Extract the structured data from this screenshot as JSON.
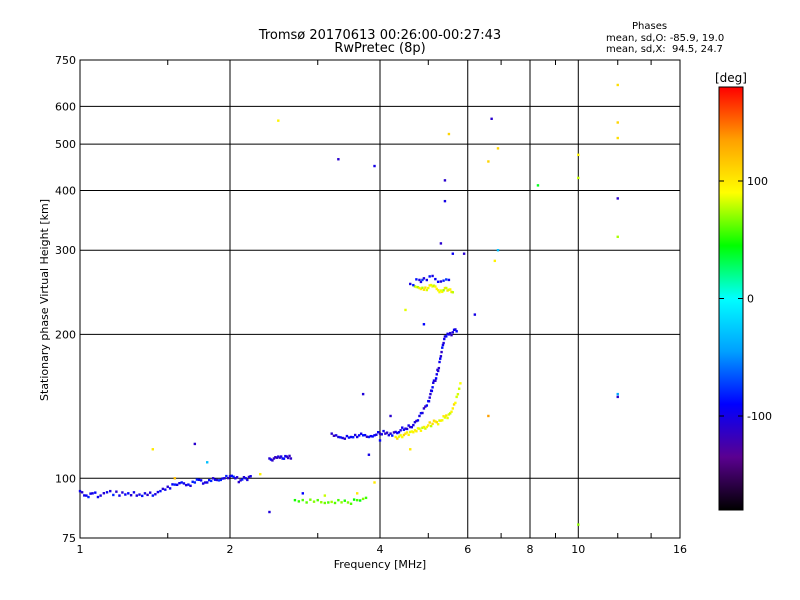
{
  "chart_data": {
    "type": "scatter",
    "title": "Tromsø 20170613 00:26:00-00:27:43",
    "subtitle": "RwPretec (8p)",
    "xlabel": "Frequency [MHz]",
    "ylabel": "Stationary phase Virtual Height [km]",
    "x_scale": "log",
    "y_scale": "log",
    "xlim": [
      1,
      16
    ],
    "ylim": [
      75,
      750
    ],
    "x_ticks": [
      1,
      2,
      4,
      6,
      8,
      10,
      16
    ],
    "y_ticks": [
      75,
      100,
      200,
      300,
      400,
      500,
      600,
      750
    ],
    "grid": true,
    "phases": {
      "heading": "Phases",
      "o_line": "mean, sd,O: -85.9, 19.0",
      "x_line": "mean, sd,X:  94.5, 24.7"
    },
    "colorbar": {
      "label": "[deg]",
      "range": [
        -180,
        180
      ],
      "ticks": [
        100,
        0,
        -100
      ],
      "colors": [
        "#000000",
        "#5a0090",
        "#0000ff",
        "#00a0ff",
        "#00ffff",
        "#00ff00",
        "#ffff00",
        "#ffa000",
        "#ff0000"
      ]
    },
    "traces": [
      {
        "name": "o-low",
        "phase": -95,
        "points": [
          [
            1.0,
            94
          ],
          [
            1.03,
            92
          ],
          [
            1.06,
            93
          ],
          [
            1.1,
            92
          ],
          [
            1.15,
            94
          ],
          [
            1.2,
            92
          ],
          [
            1.25,
            93
          ],
          [
            1.3,
            92
          ],
          [
            1.35,
            93
          ],
          [
            1.4,
            92
          ],
          [
            1.45,
            94
          ],
          [
            1.5,
            96
          ],
          [
            1.55,
            97
          ],
          [
            1.6,
            98
          ],
          [
            1.65,
            97
          ],
          [
            1.7,
            98
          ],
          [
            1.75,
            99
          ],
          [
            1.8,
            98
          ],
          [
            1.85,
            100
          ],
          [
            1.9,
            99
          ],
          [
            1.95,
            100
          ],
          [
            2.0,
            101
          ],
          [
            2.05,
            100
          ],
          [
            2.1,
            99
          ],
          [
            2.15,
            100
          ],
          [
            2.2,
            101
          ]
        ]
      },
      {
        "name": "o-e",
        "phase": -100,
        "points": [
          [
            2.4,
            110
          ],
          [
            2.45,
            110
          ],
          [
            2.5,
            111
          ],
          [
            2.55,
            110
          ],
          [
            2.6,
            111
          ],
          [
            2.65,
            110
          ]
        ]
      },
      {
        "name": "o-rise",
        "phase": -100,
        "points": [
          [
            3.2,
            124
          ],
          [
            3.3,
            122
          ],
          [
            3.4,
            121
          ],
          [
            3.5,
            122
          ],
          [
            3.6,
            122
          ],
          [
            3.7,
            123
          ],
          [
            3.8,
            122
          ],
          [
            3.9,
            123
          ],
          [
            4.0,
            124
          ],
          [
            4.1,
            124
          ],
          [
            4.2,
            124
          ],
          [
            4.3,
            125
          ],
          [
            4.4,
            126
          ],
          [
            4.5,
            127
          ],
          [
            4.6,
            128
          ],
          [
            4.7,
            131
          ],
          [
            4.8,
            135
          ],
          [
            4.9,
            140
          ],
          [
            5.0,
            145
          ],
          [
            5.05,
            150
          ],
          [
            5.1,
            155
          ],
          [
            5.15,
            160
          ],
          [
            5.2,
            165
          ],
          [
            5.25,
            170
          ],
          [
            5.3,
            180
          ],
          [
            5.35,
            190
          ],
          [
            5.4,
            198
          ],
          [
            5.5,
            200
          ],
          [
            5.6,
            202
          ],
          [
            5.7,
            203
          ]
        ]
      },
      {
        "name": "x-rise",
        "phase": 95,
        "points": [
          [
            4.3,
            122
          ],
          [
            4.4,
            123
          ],
          [
            4.5,
            124
          ],
          [
            4.6,
            125
          ],
          [
            4.7,
            126
          ],
          [
            4.8,
            127
          ],
          [
            4.9,
            128
          ],
          [
            5.0,
            129
          ],
          [
            5.1,
            130
          ],
          [
            5.2,
            131
          ],
          [
            5.3,
            132
          ],
          [
            5.4,
            134
          ],
          [
            5.5,
            136
          ],
          [
            5.6,
            140
          ],
          [
            5.7,
            148
          ],
          [
            5.8,
            158
          ]
        ]
      },
      {
        "name": "x-low",
        "phase": 60,
        "points": [
          [
            2.7,
            90
          ],
          [
            2.85,
            89
          ],
          [
            3.0,
            90
          ],
          [
            3.15,
            89
          ],
          [
            3.3,
            90
          ],
          [
            3.45,
            89
          ],
          [
            3.6,
            90
          ],
          [
            3.75,
            91
          ]
        ]
      },
      {
        "name": "x-f2",
        "phase": 90,
        "points": [
          [
            4.7,
            252
          ],
          [
            4.8,
            250
          ],
          [
            4.9,
            248
          ],
          [
            5.0,
            250
          ],
          [
            5.1,
            252
          ],
          [
            5.2,
            249
          ],
          [
            5.3,
            247
          ],
          [
            5.4,
            250
          ],
          [
            5.5,
            248
          ],
          [
            5.6,
            245
          ]
        ]
      },
      {
        "name": "o-f2",
        "phase": -90,
        "points": [
          [
            4.6,
            255
          ],
          [
            4.8,
            260
          ],
          [
            4.9,
            262
          ],
          [
            5.1,
            265
          ],
          [
            5.3,
            258
          ],
          [
            5.5,
            260
          ]
        ]
      }
    ],
    "scatter": [
      [
        2.5,
        560,
        95
      ],
      [
        3.3,
        465,
        -110
      ],
      [
        3.9,
        450,
        -100
      ],
      [
        5.5,
        525,
        110
      ],
      [
        5.4,
        420,
        -110
      ],
      [
        5.4,
        380,
        -100
      ],
      [
        6.7,
        565,
        -110
      ],
      [
        6.9,
        490,
        110
      ],
      [
        6.6,
        460,
        110
      ],
      [
        8.3,
        410,
        40
      ],
      [
        10.0,
        475,
        95
      ],
      [
        10.0,
        425,
        80
      ],
      [
        12.0,
        665,
        105
      ],
      [
        12.0,
        555,
        110
      ],
      [
        12.0,
        515,
        105
      ],
      [
        12.0,
        385,
        -110
      ],
      [
        12.0,
        320,
        75
      ],
      [
        6.9,
        300,
        -30
      ],
      [
        6.8,
        285,
        95
      ],
      [
        6.2,
        220,
        -100
      ],
      [
        6.6,
        135,
        135
      ],
      [
        12.0,
        150,
        -40
      ],
      [
        12.0,
        148,
        -110
      ],
      [
        10.0,
        80,
        70
      ],
      [
        3.7,
        150,
        -105
      ],
      [
        4.9,
        210,
        -90
      ],
      [
        5.3,
        310,
        -110
      ],
      [
        5.6,
        295,
        -95
      ],
      [
        4.5,
        225,
        85
      ],
      [
        4.0,
        120,
        -90
      ],
      [
        1.4,
        115,
        100
      ],
      [
        1.7,
        118,
        -110
      ],
      [
        2.4,
        85,
        -105
      ],
      [
        2.8,
        93,
        -90
      ],
      [
        3.1,
        92,
        80
      ],
      [
        3.6,
        93,
        100
      ],
      [
        3.9,
        98,
        100
      ],
      [
        4.2,
        135,
        -110
      ],
      [
        4.6,
        115,
        100
      ],
      [
        5.9,
        295,
        -110
      ],
      [
        3.8,
        112,
        -100
      ],
      [
        1.55,
        100,
        120
      ],
      [
        1.8,
        108,
        -30
      ],
      [
        2.3,
        102,
        95
      ]
    ]
  }
}
